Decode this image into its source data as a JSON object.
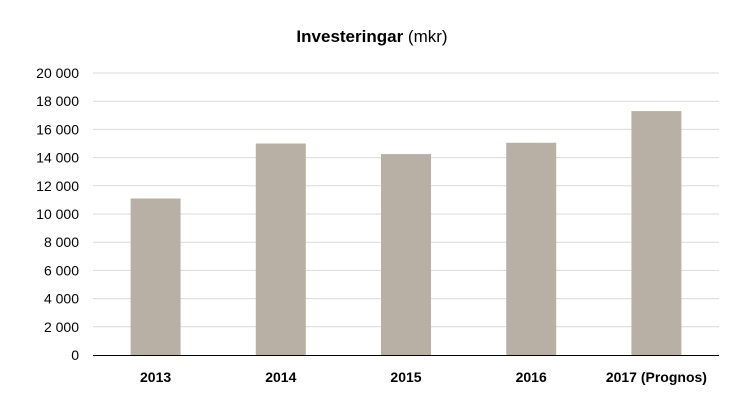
{
  "chart_data": {
    "type": "bar",
    "title": "Investeringar",
    "title_unit": "(mkr)",
    "categories": [
      "2013",
      "2014",
      "2015",
      "2016",
      "2017 (Prognos)"
    ],
    "values": [
      11100,
      15000,
      14250,
      15050,
      17300
    ],
    "ylim": [
      0,
      20000
    ],
    "yticks": [
      0,
      2000,
      4000,
      6000,
      8000,
      10000,
      12000,
      14000,
      16000,
      18000,
      20000
    ],
    "ytick_labels": [
      "0",
      "2 000",
      "4 000",
      "6 000",
      "8 000",
      "10 000",
      "12 000",
      "14 000",
      "16 000",
      "18 000",
      "20 000"
    ],
    "xlabel": "",
    "ylabel": "",
    "grid": true,
    "legend": "none",
    "bar_color": "#b9b0a5",
    "grid_color": "#d9d9d9",
    "axis_color": "#000000"
  }
}
